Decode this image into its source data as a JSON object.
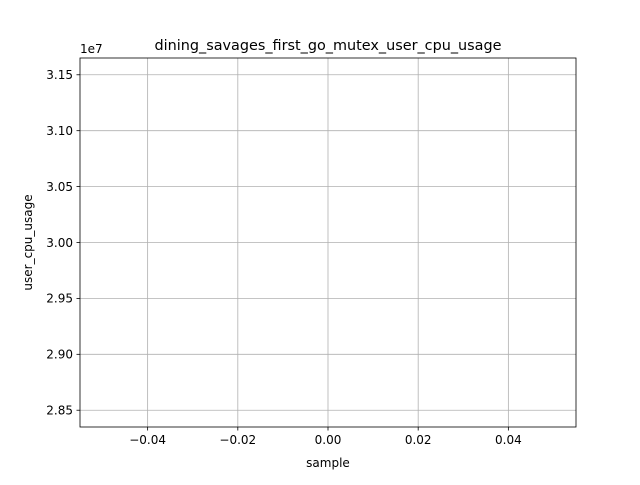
{
  "chart_data": {
    "type": "line",
    "title": "dining_savages_first_go_mutex_user_cpu_usage",
    "xlabel": "sample",
    "ylabel": "user_cpu_usage",
    "y_offset_text": "1e7",
    "x_ticks": [
      {
        "value": -0.04,
        "label": "−0.04"
      },
      {
        "value": -0.02,
        "label": "−0.02"
      },
      {
        "value": 0.0,
        "label": "0.00"
      },
      {
        "value": 0.02,
        "label": "0.02"
      },
      {
        "value": 0.04,
        "label": "0.04"
      }
    ],
    "y_ticks": [
      {
        "value": 2.85,
        "label": "2.85"
      },
      {
        "value": 2.9,
        "label": "2.90"
      },
      {
        "value": 2.95,
        "label": "2.95"
      },
      {
        "value": 3.0,
        "label": "3.00"
      },
      {
        "value": 3.05,
        "label": "3.05"
      },
      {
        "value": 3.1,
        "label": "3.10"
      },
      {
        "value": 3.15,
        "label": "3.15"
      }
    ],
    "xlim": [
      -0.055,
      0.055
    ],
    "ylim": [
      2.835,
      3.165
    ],
    "grid": true,
    "series": [
      {
        "values": []
      }
    ]
  }
}
